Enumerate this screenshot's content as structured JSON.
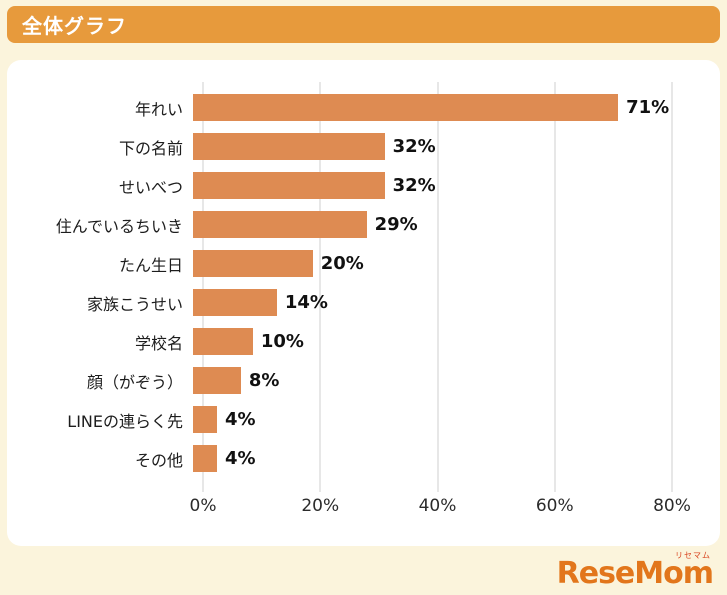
{
  "header": {
    "title": "全体グラフ",
    "bg_color": "#E79A3C",
    "text_color": "#FFFFFF"
  },
  "chart_data": {
    "type": "bar",
    "orientation": "horizontal",
    "categories": [
      "年れい",
      "下の名前",
      "せいべつ",
      "住んでいるちいき",
      "たん生日",
      "家族こうせい",
      "学校名",
      "顔（がぞう）",
      "LINEの連らく先",
      "その他"
    ],
    "values": [
      71,
      32,
      32,
      29,
      20,
      14,
      10,
      8,
      4,
      4
    ],
    "value_labels": [
      "71%",
      "32%",
      "32%",
      "29%",
      "20%",
      "14%",
      "10%",
      "8%",
      "4%",
      "4%"
    ],
    "xlim": [
      0,
      80
    ],
    "ticks": [
      0,
      20,
      40,
      60,
      80
    ],
    "tick_labels": [
      "0%",
      "20%",
      "40%",
      "60%",
      "80%"
    ],
    "bar_color": "#DE8B52",
    "grid": true,
    "gridline_color": "#CFCFCF",
    "legend": "none",
    "title": "全体グラフ"
  },
  "footer": {
    "logo_text": "ReseMom",
    "logo_kana": "リセマム"
  },
  "colors": {
    "page_bg": "#FBF4DC",
    "panel_bg": "#FFFFFF",
    "logo_orange": "#E2761B"
  }
}
